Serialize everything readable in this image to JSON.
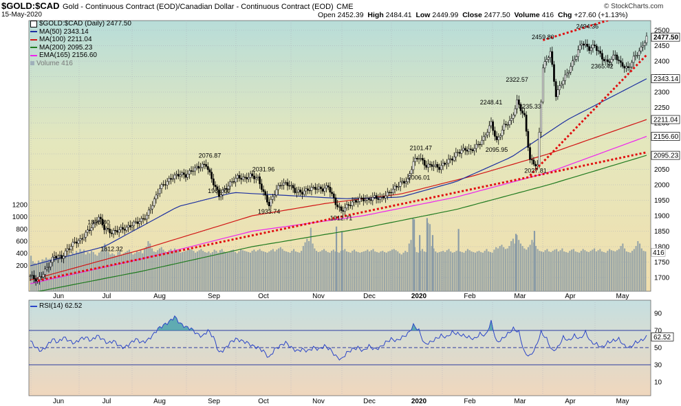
{
  "header": {
    "symbol": "$GOLD:$CAD",
    "description": "Gold - Continuous Contract (EOD)/Canadian Dollar - Continuous Contract (EOD)",
    "exchange": "CME",
    "date": "15-May-2020",
    "open_label": "Open",
    "open": "2452.39",
    "high_label": "High",
    "high": "2484.41",
    "low_label": "Low",
    "low": "2449.99",
    "close_label": "Close",
    "close": "2477.50",
    "volume_label": "Volume",
    "volume": "416",
    "chg_label": "Chg",
    "chg": "+27.60 (+1.13%)",
    "credit": "© StockCharts.com"
  },
  "legend": {
    "price": "$GOLD:$CAD (Daily) 2477.50",
    "ma50": "MA(50) 2343.14",
    "ma100": "MA(100) 2211.04",
    "ma200": "MA(200) 2095.23",
    "ema165": "EMA(165) 2156.60",
    "volume": "Volume 416"
  },
  "rsi_panel": {
    "label": "RSI(14) 62.52",
    "value_tag": "62.52",
    "ticks": [
      90,
      70,
      50,
      30,
      10
    ]
  },
  "colors": {
    "ma50": "#1c2fa0",
    "ma100": "#d11414",
    "ma200": "#1f7a1f",
    "ema165": "#ee22ee",
    "volume": "#8a9ba6",
    "trendline": "#e01010",
    "rsi": "#2b45c8"
  },
  "chart_data": {
    "type": "candlestick",
    "x_months": [
      "Jun",
      "Jul",
      "Aug",
      "Sep",
      "Oct",
      "Nov",
      "Dec",
      "2020",
      "Feb",
      "Mar",
      "Apr",
      "May"
    ],
    "y_right_ticks": [
      1700,
      1750,
      1800,
      1850,
      1900,
      1950,
      2000,
      2050,
      2100,
      2150,
      2200,
      2250,
      2300,
      2350,
      2400,
      2450,
      2500
    ],
    "volume_ticks": [
      200,
      400,
      600,
      800,
      1000,
      1200
    ],
    "price_path": [
      [
        0,
        1705
      ],
      [
        4,
        1690
      ],
      [
        9,
        1730
      ],
      [
        13,
        1770
      ],
      [
        17,
        1765
      ],
      [
        20,
        1790
      ],
      [
        24,
        1815
      ],
      [
        27,
        1820
      ],
      [
        31,
        1850
      ],
      [
        34,
        1870
      ],
      [
        37,
        1895
      ],
      [
        40,
        1860
      ],
      [
        44,
        1845
      ],
      [
        48,
        1855
      ],
      [
        52,
        1860
      ],
      [
        56,
        1875
      ],
      [
        60,
        1885
      ],
      [
        63,
        1900
      ],
      [
        67,
        1950
      ],
      [
        70,
        1990
      ],
      [
        74,
        2010
      ],
      [
        77,
        2025
      ],
      [
        81,
        2035
      ],
      [
        84,
        2030
      ],
      [
        88,
        2050
      ],
      [
        92,
        2060
      ],
      [
        95,
        2065
      ],
      [
        99,
        2005
      ],
      [
        102,
        1965
      ],
      [
        105,
        1985
      ],
      [
        109,
        2010
      ],
      [
        112,
        2025
      ],
      [
        116,
        2020
      ],
      [
        119,
        2030
      ],
      [
        123,
        2020
      ],
      [
        126,
        1975
      ],
      [
        129,
        1935
      ],
      [
        133,
        1985
      ],
      [
        136,
        2005
      ],
      [
        140,
        2000
      ],
      [
        143,
        1980
      ],
      [
        147,
        1975
      ],
      [
        150,
        1985
      ],
      [
        154,
        1990
      ],
      [
        158,
        1985
      ],
      [
        161,
        1995
      ],
      [
        165,
        1940
      ],
      [
        168,
        1915
      ],
      [
        172,
        1935
      ],
      [
        175,
        1945
      ],
      [
        179,
        1955
      ],
      [
        182,
        1950
      ],
      [
        186,
        1960
      ],
      [
        189,
        1955
      ],
      [
        193,
        1970
      ],
      [
        197,
        1990
      ],
      [
        200,
        2005
      ],
      [
        204,
        2015
      ],
      [
        207,
        2075
      ],
      [
        210,
        2090
      ],
      [
        214,
        2060
      ],
      [
        217,
        2065
      ],
      [
        221,
        2055
      ],
      [
        224,
        2070
      ],
      [
        228,
        2085
      ],
      [
        231,
        2105
      ],
      [
        235,
        2115
      ],
      [
        238,
        2110
      ],
      [
        242,
        2130
      ],
      [
        245,
        2150
      ],
      [
        249,
        2200
      ],
      [
        252,
        2140
      ],
      [
        256,
        2190
      ],
      [
        260,
        2210
      ],
      [
        263,
        2270
      ],
      [
        267,
        2220
      ],
      [
        270,
        2080
      ],
      [
        274,
        2060
      ],
      [
        277,
        2380
      ],
      [
        281,
        2430
      ],
      [
        284,
        2290
      ],
      [
        287,
        2330
      ],
      [
        291,
        2370
      ],
      [
        295,
        2420
      ],
      [
        298,
        2460
      ],
      [
        302,
        2440
      ],
      [
        305,
        2450
      ],
      [
        309,
        2410
      ],
      [
        312,
        2395
      ],
      [
        316,
        2420
      ],
      [
        319,
        2390
      ],
      [
        323,
        2375
      ],
      [
        326,
        2410
      ],
      [
        330,
        2440
      ],
      [
        333,
        2477.5
      ]
    ],
    "price_labels": [
      {
        "x": 37,
        "y": 1898.8,
        "text": "1898.80"
      },
      {
        "x": 44,
        "y": 1812.32,
        "text": "1812.32"
      },
      {
        "x": 97,
        "y": 2076.87,
        "text": "2076.87"
      },
      {
        "x": 102,
        "y": 1962.0,
        "text": "1962.00"
      },
      {
        "x": 126,
        "y": 2031.96,
        "text": "2031.96"
      },
      {
        "x": 129,
        "y": 1933.74,
        "text": "1933.74"
      },
      {
        "x": 168,
        "y": 1912.71,
        "text": "1912.71"
      },
      {
        "x": 210,
        "y": 2006.01,
        "text": "2006.01"
      },
      {
        "x": 211,
        "y": 2101.47,
        "text": "2101.47"
      },
      {
        "x": 249,
        "y": 2248.41,
        "text": "2248.41"
      },
      {
        "x": 252,
        "y": 2095.95,
        "text": "2095.95"
      },
      {
        "x": 263,
        "y": 2322.57,
        "text": "2322.57"
      },
      {
        "x": 270,
        "y": 2235.33,
        "text": "2235.33"
      },
      {
        "x": 273,
        "y": 2027.81,
        "text": "2027.81"
      },
      {
        "x": 277,
        "y": 2459.8,
        "text": "2459.80"
      },
      {
        "x": 301,
        "y": 2494.36,
        "text": "2494.36"
      },
      {
        "x": 309,
        "y": 2365.42,
        "text": "2365.42"
      }
    ],
    "right_tags": [
      {
        "value": 2477.5,
        "text": "2477.50"
      },
      {
        "value": 2343.14,
        "text": "2343.14"
      },
      {
        "value": 2211.04,
        "text": "2211.04"
      },
      {
        "value": 2156.6,
        "text": "2156.60"
      },
      {
        "value": 2095.23,
        "text": "2095.23"
      }
    ],
    "ma50": [
      [
        0,
        1738
      ],
      [
        40,
        1800
      ],
      [
        80,
        1930
      ],
      [
        110,
        1975
      ],
      [
        140,
        1965
      ],
      [
        170,
        1955
      ],
      [
        200,
        1960
      ],
      [
        230,
        2010
      ],
      [
        260,
        2090
      ],
      [
        290,
        2210
      ],
      [
        333,
        2343.14
      ]
    ],
    "ma100": [
      [
        0,
        1692
      ],
      [
        60,
        1790
      ],
      [
        120,
        1900
      ],
      [
        160,
        1940
      ],
      [
        200,
        1970
      ],
      [
        240,
        2030
      ],
      [
        280,
        2100
      ],
      [
        333,
        2211.04
      ]
    ],
    "ema165": [
      [
        0,
        1680
      ],
      [
        60,
        1760
      ],
      [
        120,
        1850
      ],
      [
        180,
        1900
      ],
      [
        230,
        1960
      ],
      [
        280,
        2040
      ],
      [
        333,
        2156.6
      ]
    ],
    "ma200": [
      [
        0,
        1650
      ],
      [
        60,
        1720
      ],
      [
        120,
        1800
      ],
      [
        180,
        1860
      ],
      [
        230,
        1920
      ],
      [
        280,
        2000
      ],
      [
        333,
        2095.23
      ]
    ],
    "volume_series": [
      360,
      270,
      240,
      220,
      280,
      250,
      300,
      290,
      330,
      300,
      310,
      330,
      350,
      330,
      300,
      340,
      380,
      370,
      360,
      350,
      400,
      370,
      420,
      390,
      440,
      410,
      470,
      430,
      460,
      380,
      420,
      400,
      440,
      420,
      380,
      360,
      410,
      430,
      500,
      560,
      480,
      420,
      380,
      400,
      380,
      360,
      420,
      440,
      380,
      400,
      420,
      440,
      460,
      420,
      380,
      400,
      430,
      420,
      450,
      400,
      470,
      510,
      600,
      560,
      480,
      430,
      420,
      450,
      480,
      500,
      460,
      430,
      420,
      450,
      470,
      440,
      480,
      460,
      450,
      410,
      420,
      430,
      440,
      480,
      470,
      460,
      440,
      410,
      430,
      450,
      470,
      440,
      420,
      410,
      430,
      400,
      420,
      460,
      440,
      410,
      450,
      470,
      430,
      420,
      410,
      430,
      450,
      460,
      420,
      400,
      430,
      470,
      450,
      440,
      430,
      420,
      410,
      440,
      460,
      430,
      450,
      470,
      440,
      430,
      420,
      410,
      430,
      450,
      470,
      430,
      460,
      480,
      500,
      470,
      440,
      430,
      420,
      410,
      440,
      470,
      430,
      420,
      410,
      440,
      520,
      580,
      640,
      600,
      820,
      560,
      480,
      440,
      420,
      430,
      450,
      470,
      440,
      420,
      410,
      440,
      460,
      430,
      420,
      410,
      440,
      450,
      470,
      430,
      420,
      410,
      440,
      460,
      430,
      420,
      410,
      420,
      430,
      440,
      460,
      430,
      450,
      470,
      430,
      420,
      410,
      430,
      440,
      420,
      410,
      430,
      440,
      460,
      470,
      450,
      430,
      400,
      380,
      410,
      440,
      420,
      560,
      620,
      980,
      500,
      420,
      410,
      440,
      470,
      430,
      420,
      900,
      880,
      520,
      480,
      430,
      410,
      420,
      430,
      440,
      420,
      450,
      470,
      430,
      410,
      420,
      440,
      450,
      430,
      420,
      410,
      440,
      470,
      450,
      430,
      420,
      410,
      430,
      440,
      420,
      410,
      440,
      470,
      430,
      420,
      410,
      460,
      500,
      480,
      520,
      540,
      500,
      470,
      480,
      520,
      600,
      640,
      560,
      700,
      620,
      560,
      520,
      480,
      460,
      500,
      540,
      620,
      580,
      520,
      470,
      440,
      430,
      420,
      450,
      470,
      430,
      420,
      440,
      460,
      470,
      430,
      450,
      480,
      430,
      420,
      410,
      440,
      460,
      470,
      430,
      420,
      410,
      440,
      470,
      450,
      430,
      420,
      440,
      460,
      480,
      430,
      450,
      470,
      430,
      420,
      410,
      440,
      470,
      450,
      440,
      430,
      450,
      470,
      520,
      560,
      480,
      430,
      420,
      410,
      440,
      470,
      520,
      600,
      560,
      480,
      440,
      430
    ],
    "volume_spikes": [
      {
        "x": 165,
        "v": 840
      },
      {
        "x": 168,
        "v": 760
      },
      {
        "x": 207,
        "v": 960
      },
      {
        "x": 210,
        "v": 700
      },
      {
        "x": 214,
        "v": 980
      },
      {
        "x": 217,
        "v": 700
      },
      {
        "x": 231,
        "v": 800
      },
      {
        "x": 262,
        "v": 720
      },
      {
        "x": 272,
        "v": 770
      }
    ],
    "rsi_series": [
      [
        0,
        58
      ],
      [
        3,
        50
      ],
      [
        6,
        46
      ],
      [
        9,
        52
      ],
      [
        12,
        60
      ],
      [
        15,
        56
      ],
      [
        18,
        62
      ],
      [
        21,
        58
      ],
      [
        24,
        55
      ],
      [
        27,
        60
      ],
      [
        30,
        62
      ],
      [
        33,
        58
      ],
      [
        36,
        64
      ],
      [
        39,
        60
      ],
      [
        42,
        55
      ],
      [
        45,
        58
      ],
      [
        48,
        52
      ],
      [
        51,
        50
      ],
      [
        54,
        55
      ],
      [
        57,
        60
      ],
      [
        60,
        56
      ],
      [
        63,
        58
      ],
      [
        66,
        64
      ],
      [
        69,
        72
      ],
      [
        72,
        76
      ],
      [
        75,
        80
      ],
      [
        78,
        86
      ],
      [
        81,
        78
      ],
      [
        84,
        74
      ],
      [
        87,
        72
      ],
      [
        90,
        66
      ],
      [
        93,
        63
      ],
      [
        96,
        70
      ],
      [
        99,
        62
      ],
      [
        102,
        44
      ],
      [
        105,
        48
      ],
      [
        108,
        56
      ],
      [
        111,
        60
      ],
      [
        114,
        58
      ],
      [
        117,
        56
      ],
      [
        120,
        52
      ],
      [
        123,
        50
      ],
      [
        126,
        46
      ],
      [
        129,
        38
      ],
      [
        132,
        48
      ],
      [
        135,
        52
      ],
      [
        138,
        56
      ],
      [
        141,
        50
      ],
      [
        144,
        46
      ],
      [
        147,
        48
      ],
      [
        150,
        46
      ],
      [
        153,
        50
      ],
      [
        156,
        48
      ],
      [
        159,
        52
      ],
      [
        162,
        48
      ],
      [
        165,
        40
      ],
      [
        168,
        36
      ],
      [
        171,
        44
      ],
      [
        174,
        48
      ],
      [
        177,
        50
      ],
      [
        180,
        46
      ],
      [
        183,
        52
      ],
      [
        186,
        48
      ],
      [
        189,
        50
      ],
      [
        192,
        56
      ],
      [
        195,
        60
      ],
      [
        198,
        58
      ],
      [
        201,
        62
      ],
      [
        204,
        66
      ],
      [
        207,
        76
      ],
      [
        210,
        70
      ],
      [
        213,
        54
      ],
      [
        216,
        56
      ],
      [
        219,
        60
      ],
      [
        222,
        64
      ],
      [
        225,
        62
      ],
      [
        228,
        68
      ],
      [
        231,
        66
      ],
      [
        234,
        64
      ],
      [
        237,
        62
      ],
      [
        240,
        60
      ],
      [
        243,
        66
      ],
      [
        246,
        64
      ],
      [
        249,
        80
      ],
      [
        252,
        56
      ],
      [
        255,
        60
      ],
      [
        258,
        66
      ],
      [
        261,
        72
      ],
      [
        264,
        68
      ],
      [
        267,
        44
      ],
      [
        270,
        40
      ],
      [
        273,
        50
      ],
      [
        276,
        68
      ],
      [
        279,
        60
      ],
      [
        282,
        46
      ],
      [
        285,
        50
      ],
      [
        288,
        62
      ],
      [
        291,
        58
      ],
      [
        294,
        64
      ],
      [
        297,
        60
      ],
      [
        300,
        68
      ],
      [
        303,
        56
      ],
      [
        306,
        54
      ],
      [
        309,
        50
      ],
      [
        312,
        56
      ],
      [
        315,
        58
      ],
      [
        318,
        60
      ],
      [
        321,
        52
      ],
      [
        324,
        50
      ],
      [
        327,
        56
      ],
      [
        330,
        58
      ],
      [
        333,
        62.52
      ]
    ]
  }
}
